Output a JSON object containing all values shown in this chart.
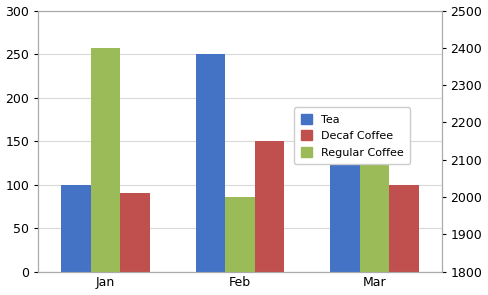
{
  "categories": [
    "Jan",
    "Feb",
    "Mar"
  ],
  "tea": [
    100,
    250,
    125
  ],
  "decaf_coffee": [
    90,
    150,
    100
  ],
  "regular_coffee": [
    2400,
    2000,
    2175
  ],
  "bar_colors": {
    "tea": "#4472C4",
    "decaf": "#C0504D",
    "regular": "#9BBB59"
  },
  "left_ylim": [
    0,
    300
  ],
  "left_yticks": [
    0,
    50,
    100,
    150,
    200,
    250,
    300
  ],
  "right_ylim": [
    1800,
    2500
  ],
  "right_yticks": [
    1800,
    1900,
    2000,
    2100,
    2200,
    2300,
    2400,
    2500
  ],
  "legend_labels": [
    "Tea",
    "Decaf Coffee",
    "Regular Coffee"
  ],
  "bg_color": "#FFFFFF",
  "grid_color": "#D9D9D9",
  "bar_width": 0.22,
  "title": ""
}
